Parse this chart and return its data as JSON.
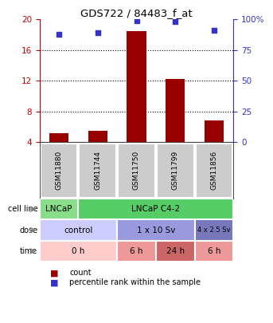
{
  "title": "GDS722 / 84483_f_at",
  "samples": [
    "GSM11880",
    "GSM11744",
    "GSM11750",
    "GSM11799",
    "GSM11856"
  ],
  "bar_values": [
    5.2,
    5.5,
    18.5,
    12.2,
    6.8
  ],
  "percentile_values": [
    88,
    89,
    99,
    98,
    91
  ],
  "ylim_left": [
    4,
    20
  ],
  "ylim_right": [
    0,
    100
  ],
  "yticks_left": [
    4,
    8,
    12,
    16,
    20
  ],
  "yticks_right": [
    0,
    25,
    50,
    75,
    100
  ],
  "ytick_right_labels": [
    "0",
    "25",
    "50",
    "75",
    "100%"
  ],
  "bar_color": "#990000",
  "dot_color": "#3333cc",
  "left_axis_color": "#cc0000",
  "right_axis_color": "#3333cc",
  "grid_color": "#000000",
  "sample_box_color": "#cccccc",
  "background_color": "#ffffff",
  "cell_data": [
    {
      "xmin": -0.5,
      "xmax": 0.5,
      "label": "LNCaP",
      "color": "#88dd88"
    },
    {
      "xmin": 0.5,
      "xmax": 4.5,
      "label": "LNCaP C4-2",
      "color": "#55cc66"
    }
  ],
  "dose_data": [
    {
      "xmin": -0.5,
      "xmax": 1.5,
      "label": "control",
      "color": "#ccccff"
    },
    {
      "xmin": 1.5,
      "xmax": 3.5,
      "label": "1 x 10 Sv",
      "color": "#9999dd"
    },
    {
      "xmin": 3.5,
      "xmax": 4.5,
      "label": "4 x 2.5 Sv",
      "color": "#7777bb"
    }
  ],
  "time_data": [
    {
      "xmin": -0.5,
      "xmax": 1.5,
      "label": "0 h",
      "color": "#ffcccc"
    },
    {
      "xmin": 1.5,
      "xmax": 2.5,
      "label": "6 h",
      "color": "#ee9999"
    },
    {
      "xmin": 2.5,
      "xmax": 3.5,
      "label": "24 h",
      "color": "#cc6666"
    },
    {
      "xmin": 3.5,
      "xmax": 4.5,
      "label": "6 h",
      "color": "#ee9999"
    }
  ],
  "legend_count_color": "#990000",
  "legend_pct_color": "#3333cc"
}
